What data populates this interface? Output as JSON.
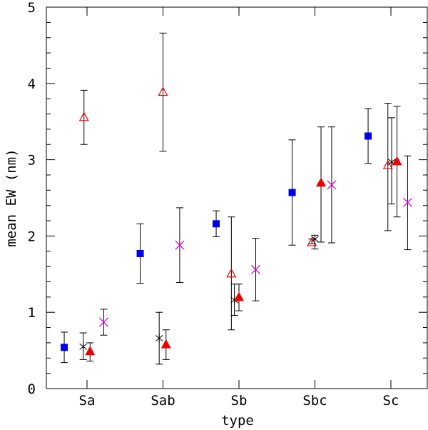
{
  "chart_data": {
    "type": "scatter",
    "title": "",
    "xlabel": "type",
    "ylabel": "mean EW (nm)",
    "categories": [
      "Sa",
      "Sab",
      "Sb",
      "Sbc",
      "Sc"
    ],
    "ylim": [
      0,
      5
    ],
    "yticks": [
      "0",
      "1",
      "2",
      "3",
      "4",
      "5"
    ],
    "grid": false,
    "colors": {
      "blue": "#0000ee",
      "red": "#ee0000",
      "magenta": "#dd00dd",
      "black": "#000000"
    },
    "series": [
      {
        "name": "filled-square",
        "marker": "square",
        "color": "#0000ee",
        "offsets": [
          -0.3,
          -0.3,
          -0.3,
          -0.3,
          -0.3
        ],
        "values": [
          0.54,
          1.77,
          2.16,
          2.57,
          3.31
        ],
        "errors": [
          [
            0.34,
            0.74
          ],
          [
            1.38,
            2.16
          ],
          [
            1.99,
            2.33
          ],
          [
            1.88,
            3.26
          ],
          [
            2.95,
            3.67
          ]
        ]
      },
      {
        "name": "open-triangle",
        "marker": "triangle-open",
        "color": "#ee0000",
        "offsets": [
          -0.04,
          0.0,
          -0.1,
          -0.04,
          -0.04
        ],
        "values": [
          3.56,
          3.89,
          1.51,
          1.92,
          2.93
        ],
        "errors": [
          [
            3.2,
            3.91
          ],
          [
            3.11,
            4.66
          ],
          [
            0.77,
            2.25
          ],
          [
            1.9,
            1.96
          ],
          [
            2.07,
            3.74
          ]
        ]
      },
      {
        "name": "asterisk",
        "marker": "asterisk",
        "color": "#000000",
        "offsets": [
          -0.05,
          -0.05,
          -0.06,
          0.0,
          0.01
        ],
        "values": [
          0.55,
          0.66,
          1.16,
          1.96,
          2.97
        ],
        "errors": [
          [
            0.38,
            0.73
          ],
          [
            0.32,
            1.0
          ],
          [
            0.96,
            1.37
          ],
          [
            1.83,
            2.01
          ],
          [
            2.42,
            3.55
          ]
        ]
      },
      {
        "name": "filled-triangle",
        "marker": "triangle",
        "color": "#ee0000",
        "offsets": [
          0.04,
          0.04,
          0.0,
          0.08,
          0.08
        ],
        "values": [
          0.49,
          0.58,
          1.2,
          2.7,
          2.98
        ],
        "errors": [
          [
            0.36,
            0.6
          ],
          [
            0.38,
            0.77
          ],
          [
            1.02,
            1.37
          ],
          [
            1.92,
            3.43
          ],
          [
            2.25,
            3.7
          ]
        ]
      },
      {
        "name": "x-cross",
        "marker": "x",
        "color": "#dd00dd",
        "offsets": [
          0.22,
          0.22,
          0.22,
          0.22,
          0.22
        ],
        "values": [
          0.87,
          1.88,
          1.56,
          2.67,
          2.44
        ],
        "errors": [
          [
            0.7,
            1.04
          ],
          [
            1.39,
            2.37
          ],
          [
            1.15,
            1.97
          ],
          [
            1.91,
            3.43
          ],
          [
            1.82,
            3.05
          ]
        ]
      }
    ]
  }
}
